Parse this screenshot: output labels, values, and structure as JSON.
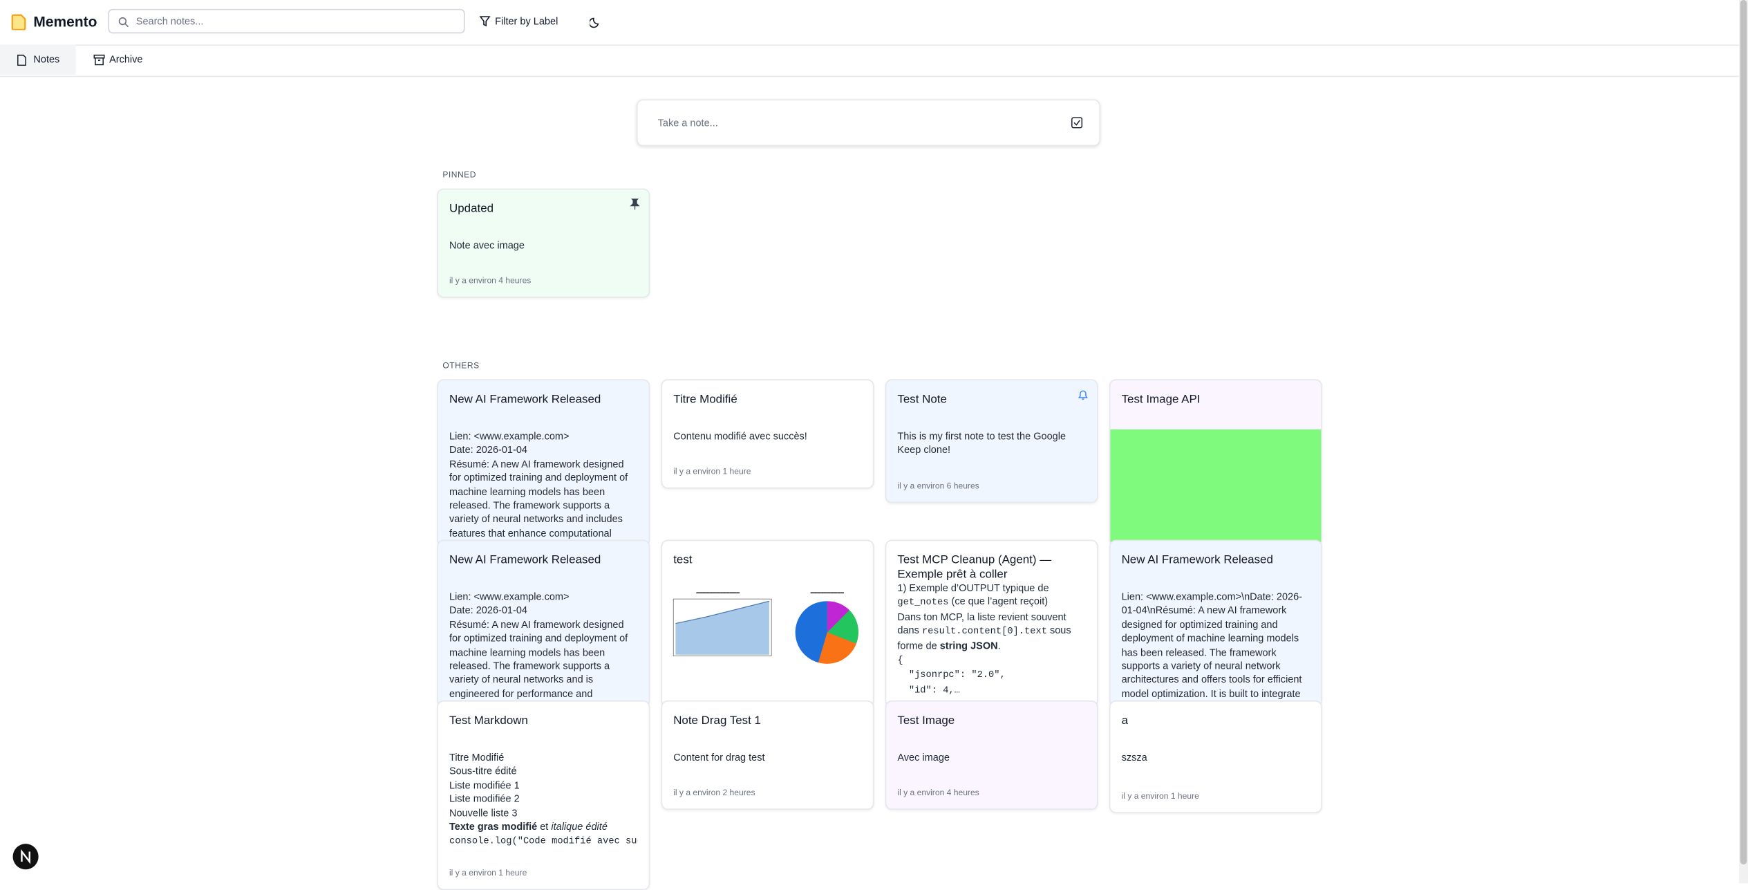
{
  "header": {
    "app_name": "Memento",
    "search_placeholder": "Search notes...",
    "filter_label": "Filter by Label"
  },
  "tabs": [
    "Notes",
    "Archive"
  ],
  "composer": {
    "placeholder": "Take a note..."
  },
  "pinned": {
    "label": "PINNED",
    "notes": [
      {
        "title": "Updated",
        "color": "#f0fdf4",
        "content": [
          "Note avec image"
        ],
        "time": "il y a environ 4 heures"
      }
    ]
  },
  "others": {
    "label": "OTHERS",
    "notes": [
      {
        "title": "New AI Framework Released",
        "color": "#eff6ff",
        "content": [
          "Lien: <www.example.com>",
          "Date: 2026-01-04",
          "Résumé: A new AI framework designed for optimized training and deployment of machine learning models has been released. The framework supports a variety of neural networks and includes features that enhance computational"
        ]
      },
      {
        "title": "Titre Modifié",
        "color": "#ffffff",
        "content": [
          "Contenu modifié avec succès!"
        ],
        "time": "il y a environ 1 heure"
      },
      {
        "title": "Test Note",
        "color": "#eff6ff",
        "content": [
          "This is my first note to test the Google Keep clone!"
        ],
        "time": "il y a environ 6 heures"
      },
      {
        "title": "Test Image API",
        "color": "#faf5ff",
        "content": []
      },
      {
        "title": "New AI Framework Released",
        "color": "#eff6ff",
        "content": [
          "Lien: <www.example.com>",
          "Date: 2026-01-04",
          "Résumé: A new AI framework designed for optimized training and deployment of machine learning models has been released. The framework supports a variety of neural networks and is engineered for performance and"
        ]
      },
      {
        "title": "test",
        "color": "#ffffff",
        "content": []
      },
      {
        "title": "Test MCP Cleanup (Agent) — Exemple prêt à coller",
        "color": "#ffffff",
        "content": [
          "1) Exemple d’OUTPUT typique de ",
          [
            {
              "text": "get_notes",
              "style": "code"
            },
            {
              "text": " (ce que l’agent reçoit)",
              "style": "plain"
            }
          ],
          [
            {
              "text": "Dans ton MCP, la liste revient souvent dans ",
              "style": "plain"
            },
            {
              "text": "result.content[0].text",
              "style": "code"
            },
            {
              "text": " sous forme de ",
              "style": "plain"
            },
            {
              "text": "string JSON",
              "style": "bold"
            },
            {
              "text": ".",
              "style": "plain"
            }
          ],
          [
            {
              "text": "{",
              "style": "code"
            }
          ],
          [
            {
              "text": "  \"jsonrpc\": \"2.0\",",
              "style": "code"
            }
          ],
          [
            {
              "text": "  \"id\": 4,…",
              "style": "code"
            }
          ]
        ]
      },
      {
        "title": "New AI Framework Released",
        "color": "#eff6ff",
        "content": [
          "Lien: <www.example.com>\\nDate: 2026-01-04\\nRésumé: A new AI framework designed for optimized training and deployment of machine learning models has been released. The framework supports a variety of neural network architectures and offers tools for efficient model optimization. It is built to integrate"
        ]
      },
      {
        "title": "Test Markdown",
        "color": "#ffffff",
        "content": [
          "Titre Modifié",
          "Sous-titre édité",
          "Liste modifiée 1",
          "Liste modifiée 2",
          "Nouvelle liste 3",
          [
            {
              "text": "Texte gras modifié",
              "style": "bold"
            },
            {
              "text": " et ",
              "style": "plain"
            },
            {
              "text": "italique édité",
              "style": "italic"
            }
          ],
          [
            {
              "text": "console.log(\"Code modifié avec succè",
              "style": "code"
            }
          ]
        ],
        "time": "il y a environ 1 heure"
      },
      {
        "title": "Note Drag Test 1",
        "color": "#ffffff",
        "content": [
          "Content for drag test"
        ],
        "time": "il y a environ 2 heures"
      },
      {
        "title": "Test Image",
        "color": "#faf5ff",
        "content": [
          "Avec image"
        ],
        "time": "il y a environ 4 heures"
      },
      {
        "title": "a",
        "color": "#ffffff",
        "content": [
          "szsza"
        ],
        "time": "il y a environ 1 heure"
      }
    ]
  }
}
